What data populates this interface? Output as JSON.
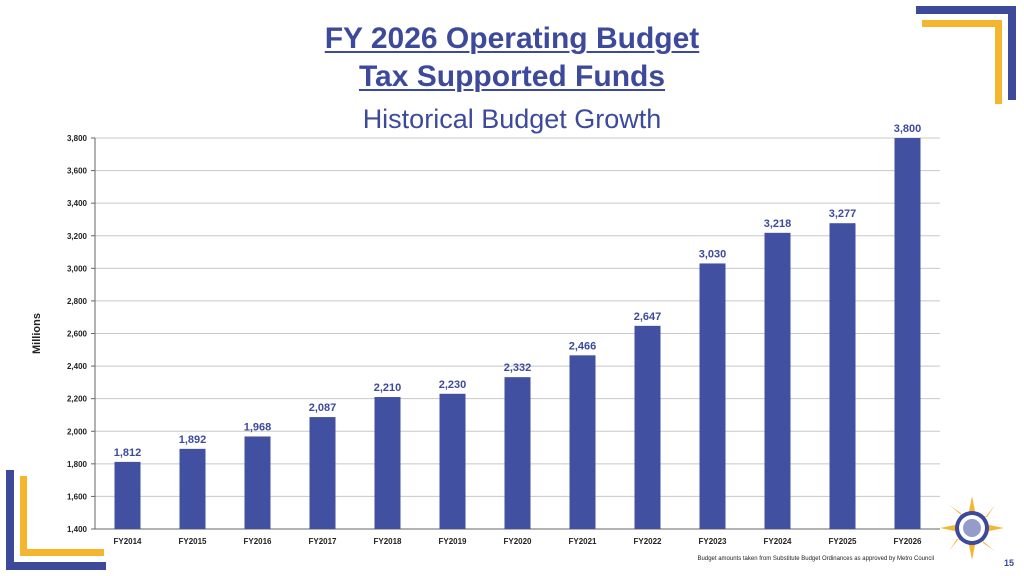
{
  "slide": {
    "title_line1": "FY 2026 Operating Budget",
    "title_line2": "Tax Supported Funds",
    "subtitle": "Historical Budget Growth",
    "footnote": "Budget amounts taken from Substitute Budget Ordinances as approved by Metro Council",
    "page_number": "15"
  },
  "colors": {
    "bar": "#4150a0",
    "accent_blue": "#3d4a9c",
    "accent_gold": "#f4b62f",
    "grid": "#c8c8c8"
  },
  "chart_data": {
    "type": "bar",
    "title": "",
    "xlabel": "",
    "ylabel": "Millions",
    "categories": [
      "FY2014",
      "FY2015",
      "FY2016",
      "FY2017",
      "FY2018",
      "FY2019",
      "FY2020",
      "FY2021",
      "FY2022",
      "FY2023",
      "FY2024",
      "FY2025",
      "FY2026"
    ],
    "values": [
      1812,
      1892,
      1968,
      2087,
      2210,
      2230,
      2332,
      2466,
      2647,
      3030,
      3218,
      3277,
      3800
    ],
    "value_labels": [
      "1,812",
      "1,892",
      "1,968",
      "2,087",
      "2,210",
      "2,230",
      "2,332",
      "2,466",
      "2,647",
      "3,030",
      "3,218",
      "3,277",
      "3,800"
    ],
    "ylim": [
      1400,
      3800
    ],
    "yticks": [
      1400,
      1600,
      1800,
      2000,
      2200,
      2400,
      2600,
      2800,
      3000,
      3200,
      3400,
      3600,
      3800
    ],
    "ytick_labels": [
      "1,400",
      "1,600",
      "1,800",
      "2,000",
      "2,200",
      "2,400",
      "2,600",
      "2,800",
      "3,000",
      "3,200",
      "3,400",
      "3,600",
      "3,800"
    ],
    "grid": true,
    "legend": "none"
  }
}
